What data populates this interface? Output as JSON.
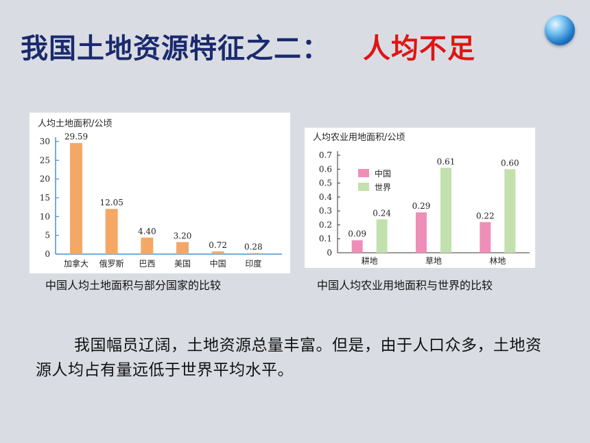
{
  "title": {
    "main": "我国土地资源特征之二：",
    "highlight": "人均不足"
  },
  "chart_data": [
    {
      "type": "bar",
      "title": "",
      "ylabel": "人均土地面积/公顷",
      "xlabel": "",
      "categories": [
        "加拿大",
        "俄罗斯",
        "巴西",
        "美国",
        "中国",
        "印度"
      ],
      "values": [
        29.59,
        12.05,
        4.4,
        3.2,
        0.72,
        0.28
      ],
      "value_labels": [
        "29.59",
        "12.05",
        "4.40",
        "3.20",
        "0.72",
        "0.28"
      ],
      "yticks": [
        "0",
        "5",
        "10",
        "15",
        "20",
        "25",
        "30"
      ],
      "ylim": [
        0,
        30
      ],
      "color": "#f4a866",
      "grid": false
    },
    {
      "type": "bar",
      "title": "",
      "ylabel": "人均农业用地面积/公顷",
      "xlabel": "",
      "categories": [
        "耕地",
        "草地",
        "林地"
      ],
      "series": [
        {
          "name": "中国",
          "values": [
            0.09,
            0.29,
            0.22
          ],
          "labels": [
            "0.09",
            "0.29",
            "0.22"
          ],
          "color": "#ee8fb8"
        },
        {
          "name": "世界",
          "values": [
            0.24,
            0.61,
            0.6
          ],
          "labels": [
            "0.24",
            "0.61",
            "0.60"
          ],
          "color": "#c3e0ad"
        }
      ],
      "yticks": [
        "0",
        "0.1",
        "0.2",
        "0.3",
        "0.4",
        "0.5",
        "0.6",
        "0.7"
      ],
      "ylim": [
        0,
        0.7
      ],
      "legend": "top-left",
      "grid": false
    }
  ],
  "captions": {
    "chart1": "中国人均土地面积与部分国家的比较",
    "chart2": "中国人均农业用地面积与世界的比较"
  },
  "paragraph": "我国幅员辽阔，土地资源总量丰富。但是，由于人口众多，土地资源人均占有量远低于世界平均水平。"
}
